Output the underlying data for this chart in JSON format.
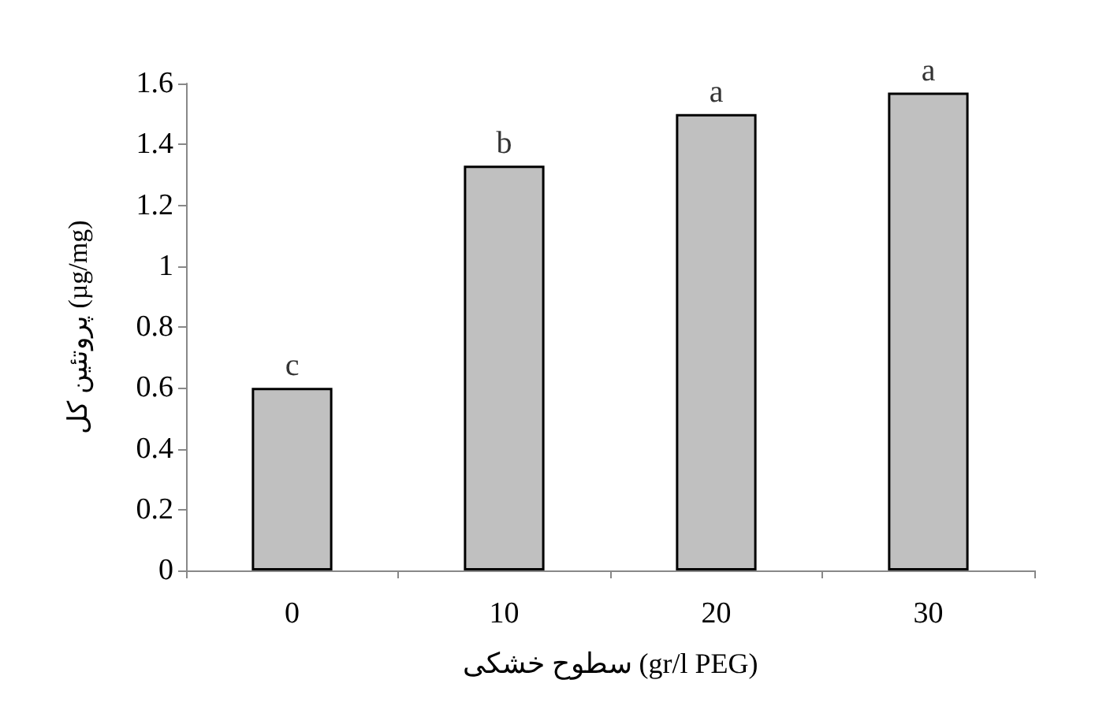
{
  "chart_data": {
    "type": "bar",
    "xlabel": "سطوح خشکی (gr/l PEG)",
    "ylabel": "پروتئین کل (µg/mg)",
    "categories": [
      "0",
      "10",
      "20",
      "30"
    ],
    "values": [
      0.6,
      1.33,
      1.5,
      1.57
    ],
    "color": "#c0c0c0",
    "ylim": [
      0,
      1.6
    ],
    "yticks": [
      0,
      0.2,
      0.4,
      0.6,
      0.8,
      1,
      1.2,
      1.4,
      1.6
    ],
    "grid": false,
    "annotations": [
      {
        "text": "c",
        "x": "0",
        "y": 0.6
      },
      {
        "text": "b",
        "x": "10",
        "y": 1.33
      },
      {
        "text": "a",
        "x": "20",
        "y": 1.5
      },
      {
        "text": "a",
        "x": "30",
        "y": 1.57
      }
    ]
  }
}
